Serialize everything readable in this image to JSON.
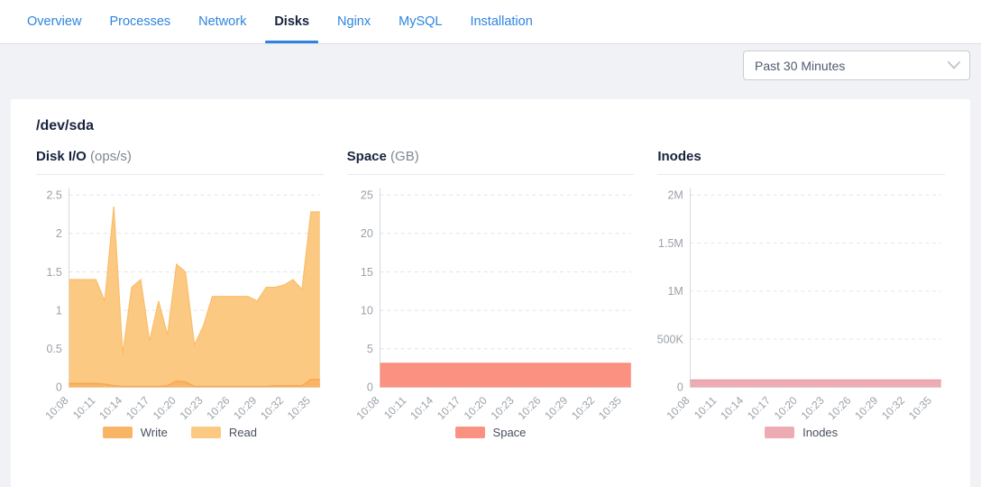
{
  "tabs": [
    {
      "label": "Overview",
      "active": false
    },
    {
      "label": "Processes",
      "active": false
    },
    {
      "label": "Network",
      "active": false
    },
    {
      "label": "Disks",
      "active": true
    },
    {
      "label": "Nginx",
      "active": false
    },
    {
      "label": "MySQL",
      "active": false
    },
    {
      "label": "Installation",
      "active": false
    }
  ],
  "toolbar": {
    "time_range_value": "Past 30 Minutes"
  },
  "device": {
    "title": "/dev/sda"
  },
  "theme": {
    "accent": "#2d85e0",
    "page_bg": "#f0f2f5",
    "grid": "#e0e3e8",
    "axis": "#d3d8de",
    "tick_text": "#9ba1a9",
    "legend_text": "#495060"
  },
  "chart_data": [
    {
      "id": "disk-io",
      "type": "area",
      "title": "Disk I/O",
      "unit": "(ops/s)",
      "ylim": [
        0,
        2.5
      ],
      "y_ticks": [
        {
          "v": 0,
          "label": "0"
        },
        {
          "v": 0.5,
          "label": "0.5"
        },
        {
          "v": 1,
          "label": "1"
        },
        {
          "v": 1.5,
          "label": "1.5"
        },
        {
          "v": 2,
          "label": "2"
        },
        {
          "v": 2.5,
          "label": "2.5"
        }
      ],
      "x_tick_labels": [
        "10:08",
        "10:11",
        "10:14",
        "10:17",
        "10:20",
        "10:23",
        "10:26",
        "10:29",
        "10:32",
        "10:35"
      ],
      "x_tick_every": 3,
      "series": [
        {
          "name": "Write",
          "fill": "#f9b465",
          "line": "#f5a64e",
          "values": [
            0.05,
            0.05,
            0.05,
            0.05,
            0.04,
            0.02,
            0.01,
            0.01,
            0.01,
            0.01,
            0.01,
            0.02,
            0.08,
            0.07,
            0.01,
            0.01,
            0.01,
            0.01,
            0.01,
            0.01,
            0.01,
            0.01,
            0.01,
            0.02,
            0.02,
            0.02,
            0.02,
            0.1,
            0.1
          ]
        },
        {
          "name": "Read",
          "fill": "#fcc983",
          "line": "#fbbd69",
          "values": [
            1.4,
            1.4,
            1.4,
            1.4,
            1.12,
            2.35,
            0.43,
            1.3,
            1.4,
            0.6,
            1.12,
            0.68,
            1.6,
            1.5,
            0.55,
            0.8,
            1.18,
            1.18,
            1.18,
            1.18,
            1.18,
            1.12,
            1.3,
            1.3,
            1.33,
            1.4,
            1.27,
            2.28,
            2.28
          ]
        }
      ]
    },
    {
      "id": "space",
      "type": "area",
      "title": "Space",
      "unit": "(GB)",
      "ylim": [
        0,
        25
      ],
      "y_ticks": [
        {
          "v": 0,
          "label": "0"
        },
        {
          "v": 5,
          "label": "5"
        },
        {
          "v": 10,
          "label": "10"
        },
        {
          "v": 15,
          "label": "15"
        },
        {
          "v": 20,
          "label": "20"
        },
        {
          "v": 25,
          "label": "25"
        }
      ],
      "x_tick_labels": [
        "10:08",
        "10:11",
        "10:14",
        "10:17",
        "10:20",
        "10:23",
        "10:26",
        "10:29",
        "10:32",
        "10:35"
      ],
      "x_tick_every": 3,
      "series": [
        {
          "name": "Space",
          "fill": "#fb9181",
          "line": "#f97f6c",
          "values": [
            3.1,
            3.1,
            3.1,
            3.1,
            3.1,
            3.1,
            3.1,
            3.1,
            3.1,
            3.1,
            3.1,
            3.1,
            3.1,
            3.1,
            3.1,
            3.1,
            3.1,
            3.1,
            3.1,
            3.1,
            3.1,
            3.1,
            3.1,
            3.1,
            3.1,
            3.1,
            3.1,
            3.1,
            3.1
          ]
        }
      ]
    },
    {
      "id": "inodes",
      "type": "area",
      "title": "Inodes",
      "unit": "",
      "ylim": [
        0,
        2000000
      ],
      "y_ticks": [
        {
          "v": 0,
          "label": "0"
        },
        {
          "v": 500000,
          "label": "500K"
        },
        {
          "v": 1000000,
          "label": "1M"
        },
        {
          "v": 1500000,
          "label": "1.5M"
        },
        {
          "v": 2000000,
          "label": "2M"
        }
      ],
      "x_tick_labels": [
        "10:08",
        "10:11",
        "10:14",
        "10:17",
        "10:20",
        "10:23",
        "10:26",
        "10:29",
        "10:32",
        "10:35"
      ],
      "x_tick_every": 3,
      "series": [
        {
          "name": "Inodes",
          "fill": "#edacb3",
          "line": "#e898a2",
          "values": [
            75000,
            75000,
            75000,
            75000,
            75000,
            75000,
            75000,
            75000,
            75000,
            75000,
            75000,
            75000,
            75000,
            75000,
            75000,
            75000,
            75000,
            75000,
            75000,
            75000,
            75000,
            75000,
            75000,
            75000,
            75000,
            75000,
            75000,
            75000,
            75000
          ]
        }
      ]
    }
  ]
}
